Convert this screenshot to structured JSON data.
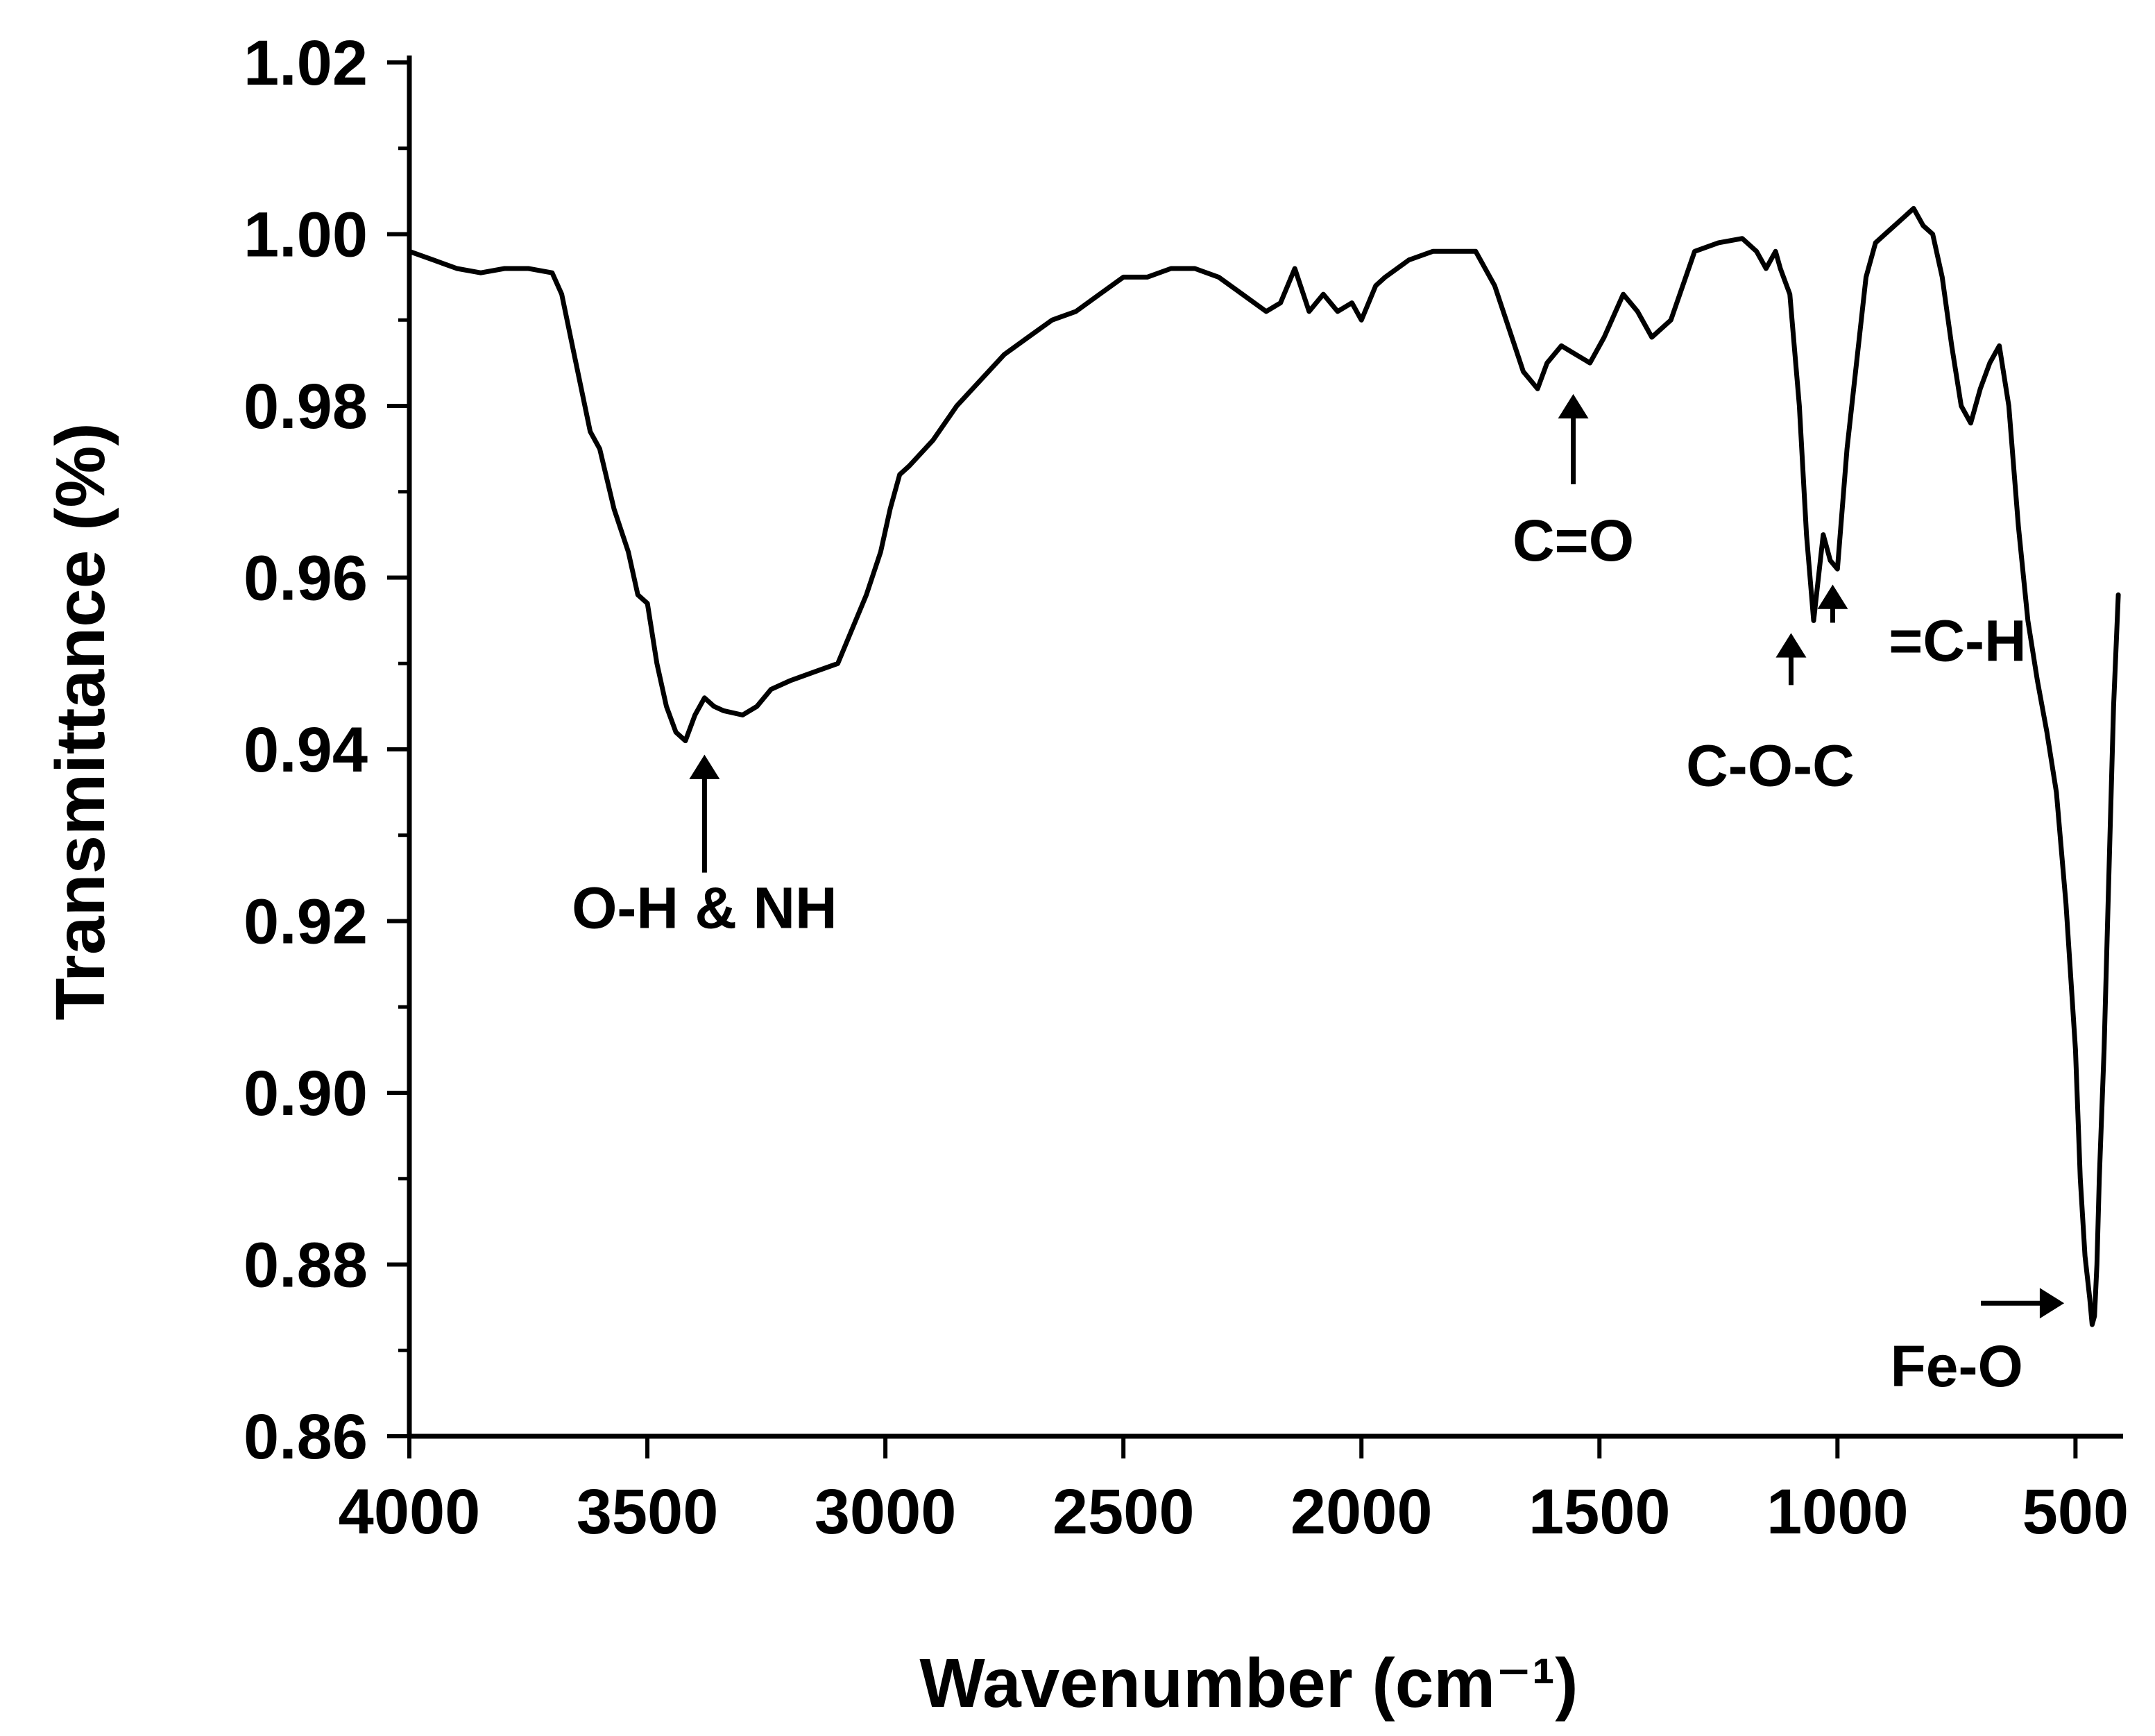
{
  "chart_data": {
    "type": "line",
    "xlabel": "Wavenumber (cm⁻¹)",
    "ylabel": "Transmittance (%)",
    "xlim": [
      4000,
      400
    ],
    "ylim": [
      0.86,
      1.02
    ],
    "x_reversed": true,
    "x_ticks": [
      4000,
      3500,
      3000,
      2500,
      2000,
      1500,
      1000,
      500
    ],
    "x_tick_labels": [
      "4000",
      "3500",
      "3000",
      "2500",
      "2000",
      "1500",
      "1000",
      "500"
    ],
    "y_ticks": [
      0.86,
      0.88,
      0.9,
      0.92,
      0.94,
      0.96,
      0.98,
      1.0,
      1.02
    ],
    "y_tick_labels": [
      "0.86",
      "0.88",
      "0.90",
      "0.92",
      "0.94",
      "0.96",
      "0.98",
      "1.00",
      "1.02"
    ],
    "grid": false,
    "line_color": "#000000",
    "series": [
      {
        "x": [
          4000,
          3950,
          3900,
          3850,
          3800,
          3750,
          3700,
          3680,
          3650,
          3620,
          3600,
          3570,
          3540,
          3520,
          3500,
          3480,
          3460,
          3440,
          3420,
          3400,
          3380,
          3360,
          3340,
          3300,
          3270,
          3240,
          3200,
          3150,
          3100,
          3070,
          3040,
          3010,
          2990,
          2970,
          2950,
          2900,
          2850,
          2800,
          2750,
          2700,
          2650,
          2600,
          2550,
          2500,
          2450,
          2400,
          2350,
          2300,
          2250,
          2200,
          2170,
          2140,
          2110,
          2080,
          2050,
          2020,
          2000,
          1970,
          1950,
          1900,
          1850,
          1800,
          1760,
          1720,
          1690,
          1660,
          1630,
          1610,
          1580,
          1550,
          1520,
          1490,
          1450,
          1420,
          1390,
          1350,
          1300,
          1250,
          1200,
          1170,
          1150,
          1130,
          1120,
          1100,
          1080,
          1065,
          1050,
          1040,
          1030,
          1015,
          1000,
          980,
          960,
          940,
          920,
          900,
          880,
          860,
          840,
          820,
          800,
          780,
          760,
          740,
          720,
          700,
          680,
          660,
          640,
          620,
          600,
          580,
          560,
          540,
          520,
          500,
          490,
          480,
          470,
          465,
          460,
          455,
          450,
          440,
          430,
          420,
          410
        ],
        "y": [
          0.998,
          0.997,
          0.996,
          0.9955,
          0.996,
          0.996,
          0.9955,
          0.993,
          0.985,
          0.977,
          0.975,
          0.968,
          0.963,
          0.958,
          0.957,
          0.95,
          0.945,
          0.942,
          0.941,
          0.944,
          0.946,
          0.945,
          0.9445,
          0.944,
          0.945,
          0.947,
          0.948,
          0.949,
          0.95,
          0.954,
          0.958,
          0.963,
          0.968,
          0.972,
          0.973,
          0.976,
          0.98,
          0.983,
          0.986,
          0.988,
          0.99,
          0.991,
          0.993,
          0.995,
          0.995,
          0.996,
          0.996,
          0.995,
          0.993,
          0.991,
          0.992,
          0.996,
          0.991,
          0.993,
          0.991,
          0.992,
          0.99,
          0.994,
          0.995,
          0.997,
          0.998,
          0.998,
          0.998,
          0.994,
          0.989,
          0.984,
          0.982,
          0.985,
          0.987,
          0.986,
          0.985,
          0.988,
          0.993,
          0.991,
          0.988,
          0.99,
          0.998,
          0.999,
          0.9995,
          0.998,
          0.996,
          0.998,
          0.996,
          0.993,
          0.98,
          0.965,
          0.955,
          0.96,
          0.965,
          0.962,
          0.961,
          0.975,
          0.985,
          0.995,
          0.999,
          1.0,
          1.001,
          1.002,
          1.003,
          1.001,
          1.0,
          0.995,
          0.987,
          0.98,
          0.978,
          0.982,
          0.985,
          0.987,
          0.98,
          0.966,
          0.955,
          0.948,
          0.942,
          0.935,
          0.922,
          0.905,
          0.89,
          0.881,
          0.876,
          0.873,
          0.874,
          0.88,
          0.89,
          0.905,
          0.925,
          0.945,
          0.958
        ]
      }
    ],
    "annotations": [
      {
        "text": "O-H & NH",
        "x": 3380,
        "y": 0.941,
        "arrow": "up"
      },
      {
        "text": "C=O",
        "x": 1555,
        "y": 0.983,
        "arrow": "up"
      },
      {
        "text": "C-O-C",
        "x": 1080,
        "y": 0.955,
        "arrow": "up"
      },
      {
        "text": "=C-H",
        "x": 1010,
        "y": 0.96,
        "arrow": "up"
      },
      {
        "text": "Fe-O",
        "x": 480,
        "y": 0.8755,
        "arrow": "right"
      }
    ]
  }
}
